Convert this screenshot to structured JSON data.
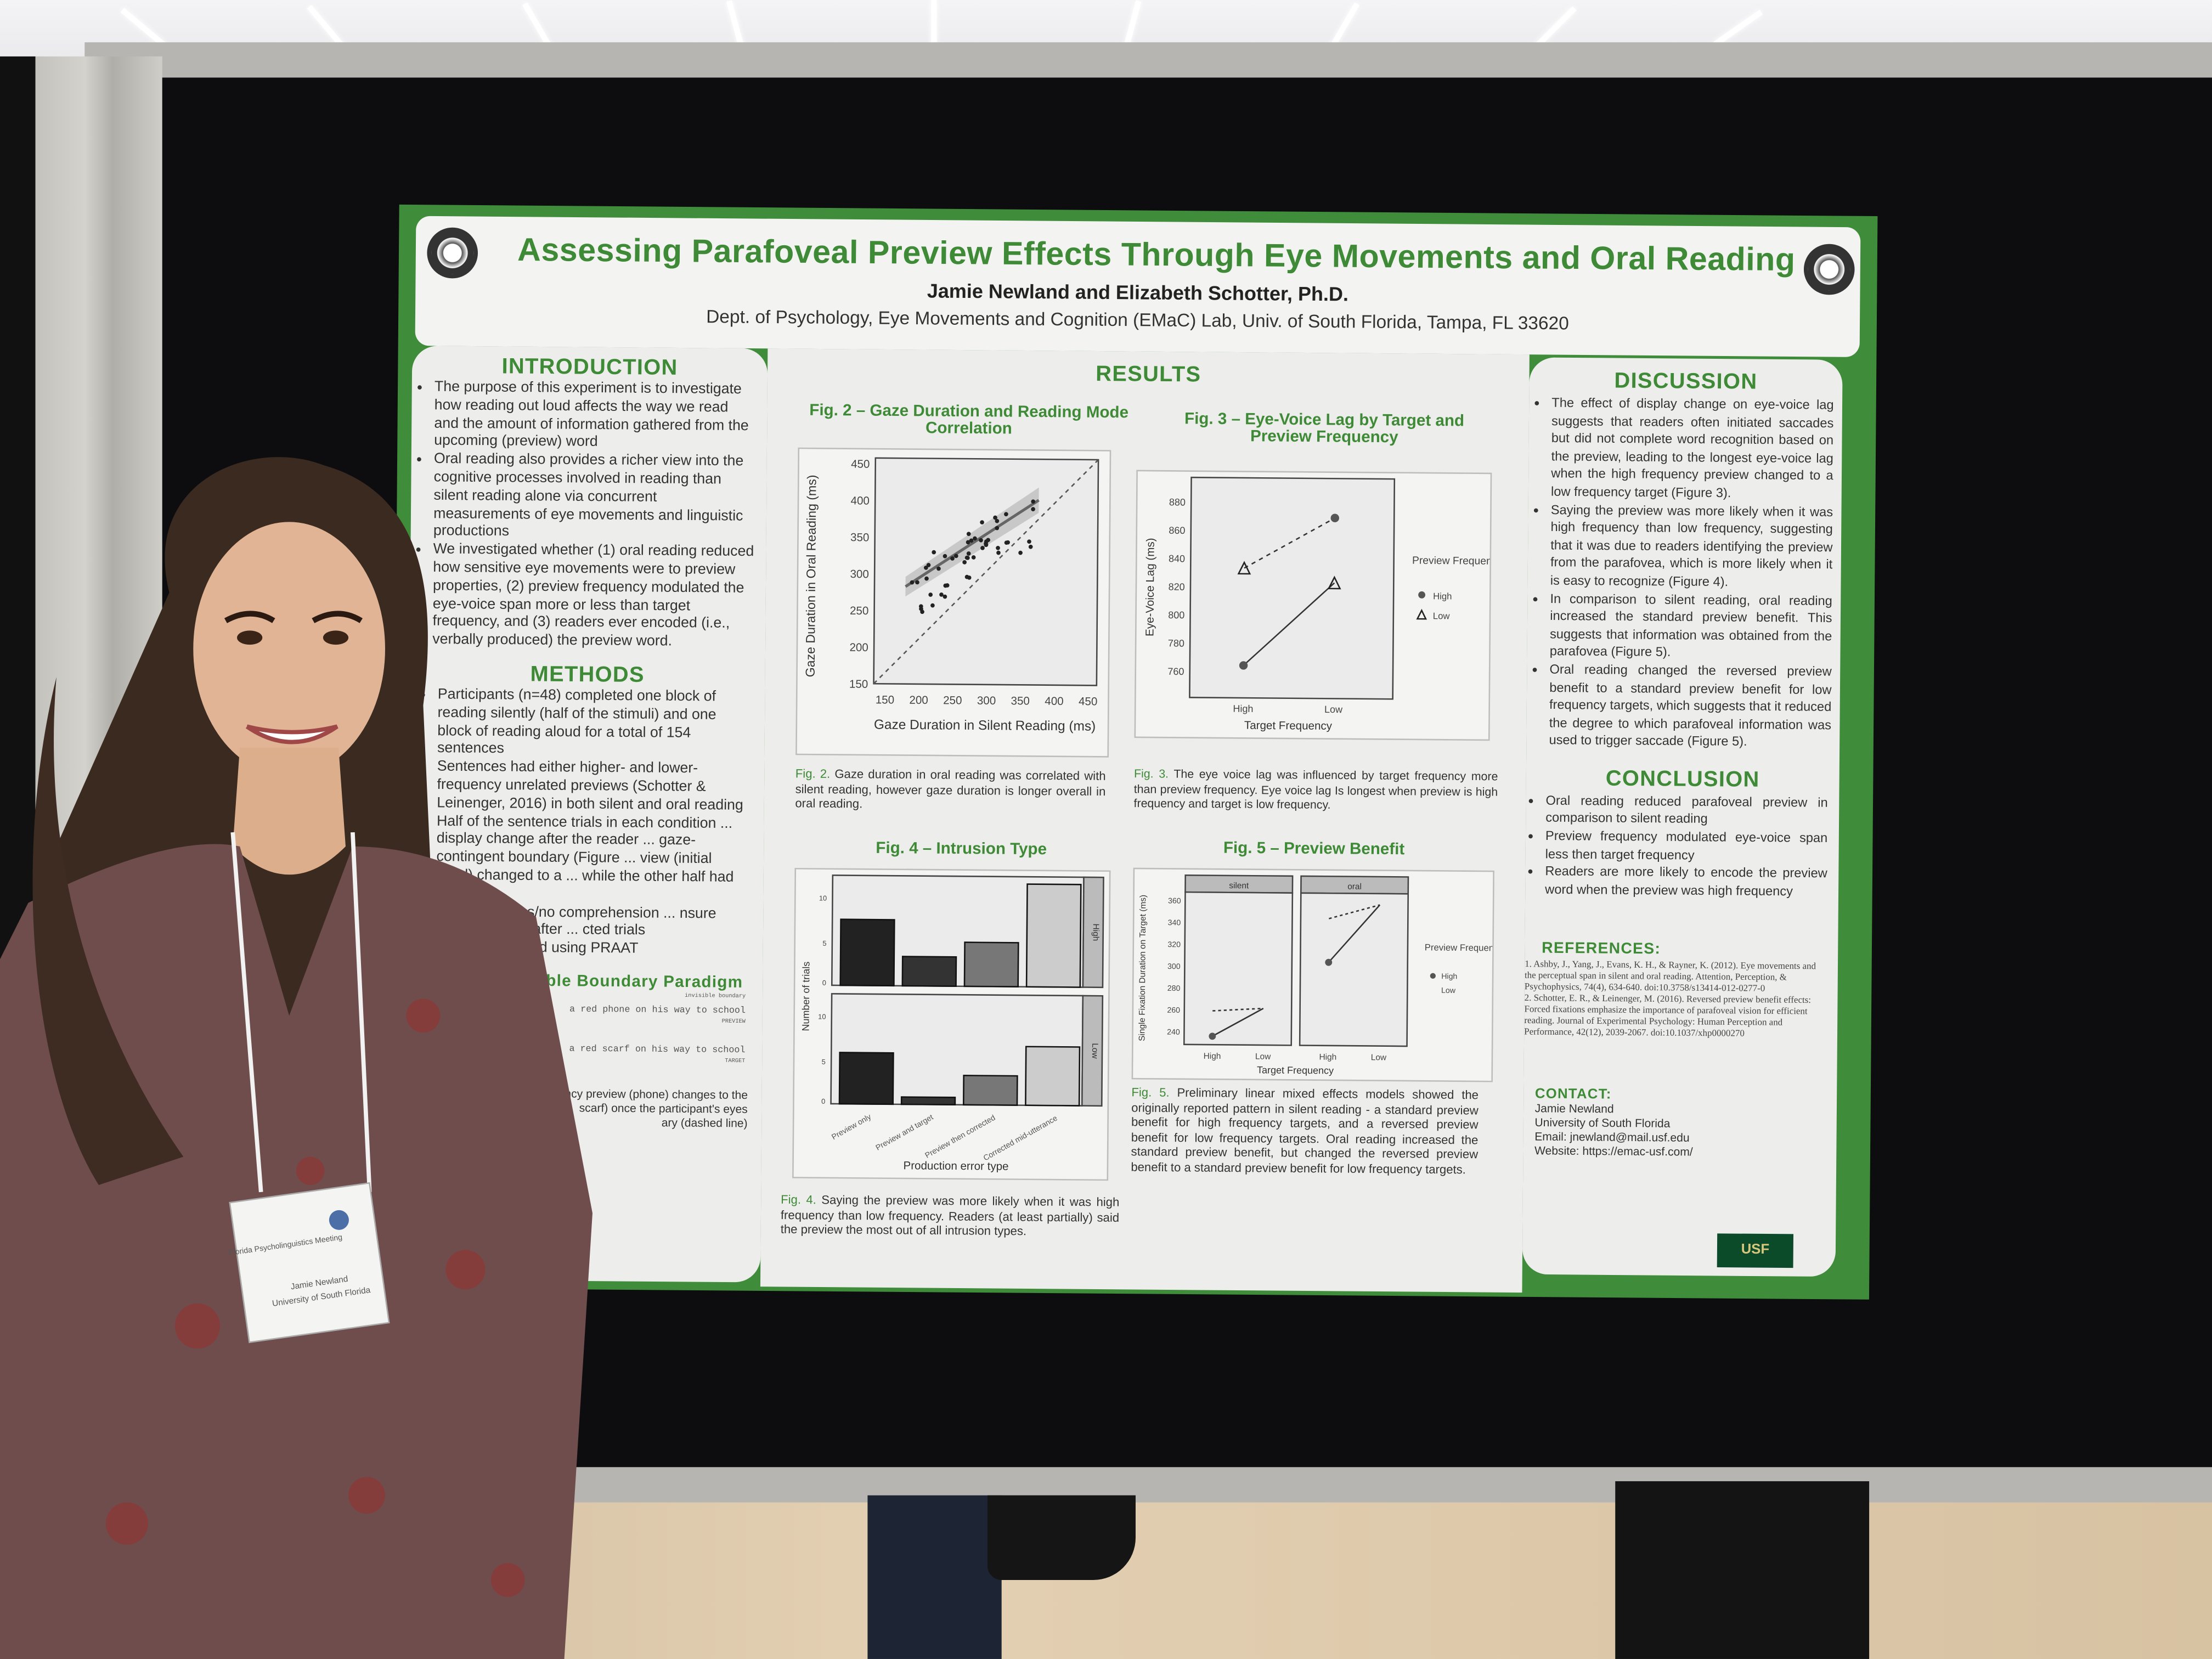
{
  "poster": {
    "title": "Assessing Parafoveal Preview Effects Through Eye Movements and Oral Reading",
    "authors": "Jamie Newland and Elizabeth Schotter, Ph.D.",
    "affiliation": "Dept. of Psychology, Eye Movements and Cognition (EMaC) Lab, Univ. of South Florida, Tampa, FL 33620",
    "colors": {
      "green": "#3e8a36",
      "panel": "#ededeb",
      "board": "#0d0d0f"
    }
  },
  "introduction": {
    "heading": "INTRODUCTION",
    "bullets": [
      "The purpose of this experiment is to investigate how reading out loud affects the way we read and the amount of information gathered from the upcoming (preview) word",
      "Oral reading also provides a richer view into the cognitive processes involved in reading than silent reading alone via concurrent measurements of eye movements and linguistic productions",
      "We investigated whether (1) oral reading reduced how sensitive eye movements were to preview properties, (2) preview frequency modulated the eye-voice span more or less than target frequency, and (3) readers ever encoded (i.e., verbally produced) the preview word."
    ]
  },
  "methods": {
    "heading": "METHODS",
    "bullets": [
      "Participants (n=48) completed one block of reading silently (half of the stimuli) and one block of reading aloud for a total of 154 sentences",
      "Sentences had either higher- and lower-frequency unrelated previews (Schotter & Leinenger, 2016) in both silent and oral reading",
      "Half of the sentence trials in each condition ... display change after the reader ... gaze-contingent boundary (Figure ... view (initial word) changed to a ... while the other half had no",
      "... nswered yes/no comprehension ... nsure understanding after ... cted trials",
      "... gs were coded using PRAAT"
    ],
    "paradigm_heading": "ble Boundary Paradigm",
    "paradigm_label_boundary": "invisible boundary",
    "paradigm_sentence_1": "a red phone on his way to school",
    "paradigm_label_preview": "PREVIEW",
    "paradigm_sentence_2": "a red scarf on his way to school",
    "paradigm_label_target": "TARGET",
    "paradigm_caption": "ncy preview (phone) changes to the scarf) once the participant's eyes ary (dashed line)"
  },
  "results": {
    "heading": "RESULTS",
    "fig2": {
      "title": "Fig. 2 – Gaze Duration and Reading Mode Correlation",
      "ylabel": "Gaze Duration in Oral Reading (ms)",
      "xlabel": "Gaze Duration in Silent Reading (ms)",
      "yticks": [
        "450",
        "400",
        "350",
        "300",
        "250",
        "200",
        "150"
      ],
      "xticks": [
        "150",
        "200",
        "250",
        "300",
        "350",
        "400",
        "450"
      ],
      "caption_label": "Fig. 2.",
      "caption": "Gaze duration in oral reading was correlated with silent reading, however gaze duration is longer overall in oral reading."
    },
    "fig3": {
      "title": "Fig. 3 – Eye-Voice Lag by Target and Preview Frequency",
      "ylabel": "Eye-Voice Lag (ms)",
      "xlabel": "Target Frequency",
      "yticks": [
        "880",
        "860",
        "840",
        "820",
        "800",
        "780",
        "760"
      ],
      "xticks": [
        "High",
        "Low"
      ],
      "legend_title": "Preview Frequency",
      "legend": [
        "High",
        "Low"
      ],
      "caption_label": "Fig. 3.",
      "caption": "The eye voice lag was influenced by target frequency more than preview frequency. Eye voice lag Is longest when preview is high frequency and target is low frequency."
    },
    "fig4": {
      "title": "Fig. 4 – Intrusion Type",
      "ylabel": "Number of trials",
      "xlabel": "Production error type",
      "yticks": [
        "10",
        "5",
        "0"
      ],
      "facets": [
        "High",
        "Low"
      ],
      "categories": [
        "Preview only",
        "Preview and target",
        "Preview then corrected",
        "Corrected mid-utterance"
      ],
      "caption_label": "Fig. 4.",
      "caption": "Saying the preview was more likely when it was high frequency than low frequency. Readers (at least partially) said the preview the most out of all intrusion types."
    },
    "fig5": {
      "title": "Fig. 5 – Preview Benefit",
      "ylabel": "Single Fixation Duration on Target (ms)",
      "xlabel": "Target Frequency",
      "panels": [
        "silent",
        "oral"
      ],
      "yticks": [
        "360",
        "340",
        "320",
        "300",
        "280",
        "260",
        "240"
      ],
      "xticks": [
        "High",
        "Low"
      ],
      "legend_title": "Preview Frequency",
      "legend": [
        "High",
        "Low"
      ],
      "caption_label": "Fig. 5.",
      "caption": "Preliminary linear mixed effects models showed the originally reported pattern in silent reading - a standard preview benefit for high frequency targets, and a reversed preview benefit for low frequency targets. Oral reading increased the standard preview benefit, but changed the reversed preview benefit to a standard preview benefit for low frequency targets."
    }
  },
  "discussion": {
    "heading": "DISCUSSION",
    "bullets": [
      "The effect of display change on eye-voice lag suggests that readers often initiated saccades but did not complete word recognition based on the preview, leading to the longest eye-voice lag when the high frequency preview changed to a low frequency target (Figure 3).",
      "Saying the preview was more likely when it was high frequency than low frequency, suggesting that it was due to readers identifying the preview from the parafovea, which is more likely when it is easy to recognize (Figure 4).",
      "In comparison to silent reading, oral reading increased the standard preview benefit. This suggests that information was obtained from the parafovea (Figure 5).",
      "Oral reading changed the reversed preview benefit to a standard preview benefit for low frequency targets, which suggests that it reduced the degree to which parafoveal information was used to trigger saccade (Figure 5)."
    ]
  },
  "conclusion": {
    "heading": "CONCLUSION",
    "bullets": [
      "Oral reading reduced parafoveal preview in comparison to silent reading",
      "Preview frequency modulated eye-voice span less then target frequency",
      "Readers are more likely to encode the preview word when the preview was high frequency"
    ]
  },
  "references": {
    "heading": "REFERENCES:",
    "items": [
      "1. Ashby, J., Yang, J., Evans, K. H., & Rayner, K. (2012). Eye movements and the perceptual span in silent and oral reading. Attention, Perception, & Psychophysics, 74(4), 634-640. doi:10.3758/s13414-012-0277-0",
      "2. Schotter, E. R., & Leinenger, M. (2016). Reversed preview benefit effects: Forced fixations emphasize the importance of parafoveal vision for efficient reading. Journal of Experimental Psychology: Human Perception and Performance, 42(12), 2039-2067. doi:10.1037/xhp0000270"
    ]
  },
  "contact": {
    "heading": "CONTACT:",
    "name": "Jamie Newland",
    "university": "University of South Florida",
    "email": "Email: jnewland@mail.usf.edu",
    "website": "Website: https://emac-usf.com/",
    "logo_text": "USF"
  },
  "badge": {
    "event": "Florida Psycholinguistics Meeting",
    "name": "Jamie Newland",
    "org": "University of South Florida"
  }
}
